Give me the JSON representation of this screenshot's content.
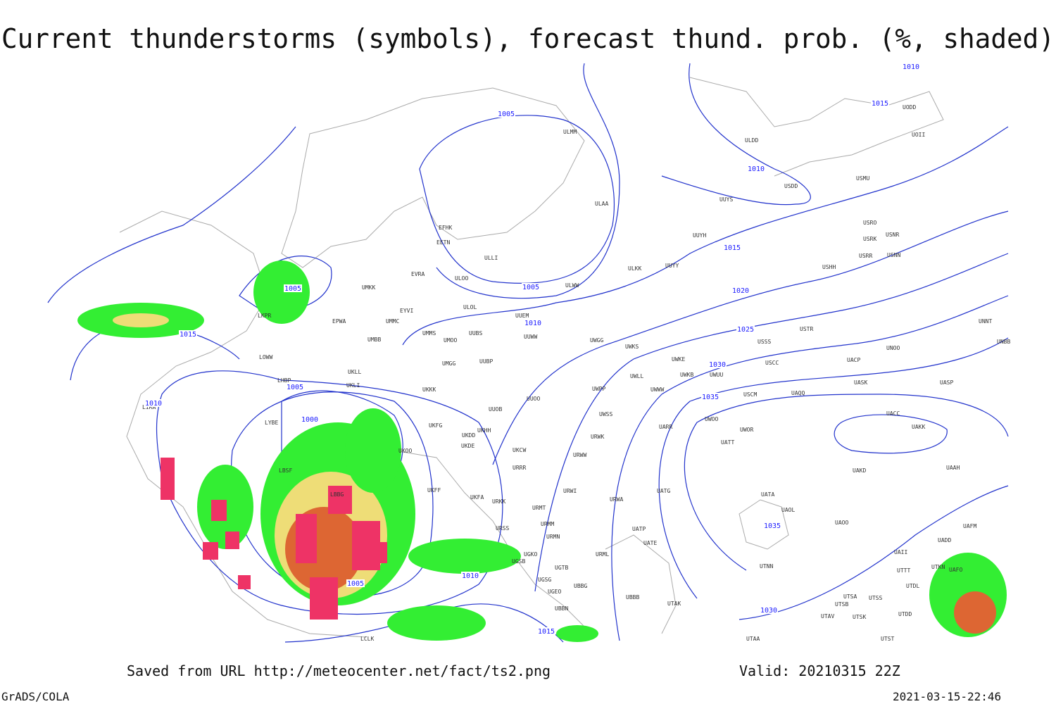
{
  "title": "Current thunderstorms (symbols), forecast thund. prob. (%, shaded)",
  "contour_labels": [
    1010,
    1015,
    1005,
    1010,
    1015,
    1005,
    1005,
    1020,
    1010,
    1025,
    1015,
    1030,
    1005,
    1035,
    1010,
    1000,
    1035,
    1005,
    1010,
    1030,
    1015
  ],
  "stations": [
    "ULMM",
    "ULDD",
    "UODD",
    "UOII",
    "USMU",
    "USDD",
    "ULAA",
    "UUYS",
    "USRO",
    "USRK",
    "USNR",
    "UUYH",
    "EFHK",
    "EETN",
    "ULLI",
    "USRR",
    "USNN",
    "ULKK",
    "UUYY",
    "USHH",
    "EVRA",
    "ULOO",
    "UMKK",
    "ULWW",
    "EYVI",
    "ULOL",
    "UUEM",
    "EPWA",
    "UMMC",
    "LKPR",
    "UMMS",
    "UMOO",
    "UUBS",
    "UUWW",
    "UWGG",
    "UWKS",
    "USSS",
    "USTR",
    "UNOO",
    "UNNT",
    "UNBB",
    "UMBB",
    "LOWW",
    "UMGG",
    "UUBP",
    "UWKE",
    "UWKB",
    "UWUU",
    "USCC",
    "UACP",
    "UKLL",
    "UKLI",
    "LHBP",
    "UKKK",
    "UUOO",
    "UWPP",
    "UWLL",
    "UWWW",
    "USCM",
    "UAQQ",
    "UASK",
    "UASP",
    "LIRA",
    "UUOB",
    "UWSS",
    "UACC",
    "LYBE",
    "UKFG",
    "UKDD",
    "UKHH",
    "UARR",
    "UWOO",
    "UWOR",
    "UAKK",
    "UKOO",
    "UKDE",
    "UKCW",
    "URWK",
    "URWW",
    "UATT",
    "LBSF",
    "URRR",
    "UAKD",
    "UAAH",
    "UKFF",
    "URWI",
    "UATG",
    "LBBG",
    "UKFA",
    "URKK",
    "URWA",
    "UATA",
    "UAOL",
    "URMT",
    "URMM",
    "URSS",
    "UATP",
    "UAOO",
    "UAFM",
    "URMN",
    "UATE",
    "UADD",
    "UGKO",
    "UAII",
    "UGSB",
    "UGTB",
    "URML",
    "UTNN",
    "UTTT",
    "UTKN",
    "UAFO",
    "UGSG",
    "UTDL",
    "UBBG",
    "UGEO",
    "UBBB",
    "UTSA",
    "UTSS",
    "UTSB",
    "UTAK",
    "UBBN",
    "UTAV",
    "UTSK",
    "UTDD",
    "UTAA",
    "UTST",
    "LCLK"
  ],
  "footer": {
    "source": "Saved from URL http://meteocenter.net/fact/ts2.png",
    "valid": "Valid: 20210315 22Z",
    "software": "GrADS/COLA",
    "timestamp": "2021-03-15-22:46"
  }
}
